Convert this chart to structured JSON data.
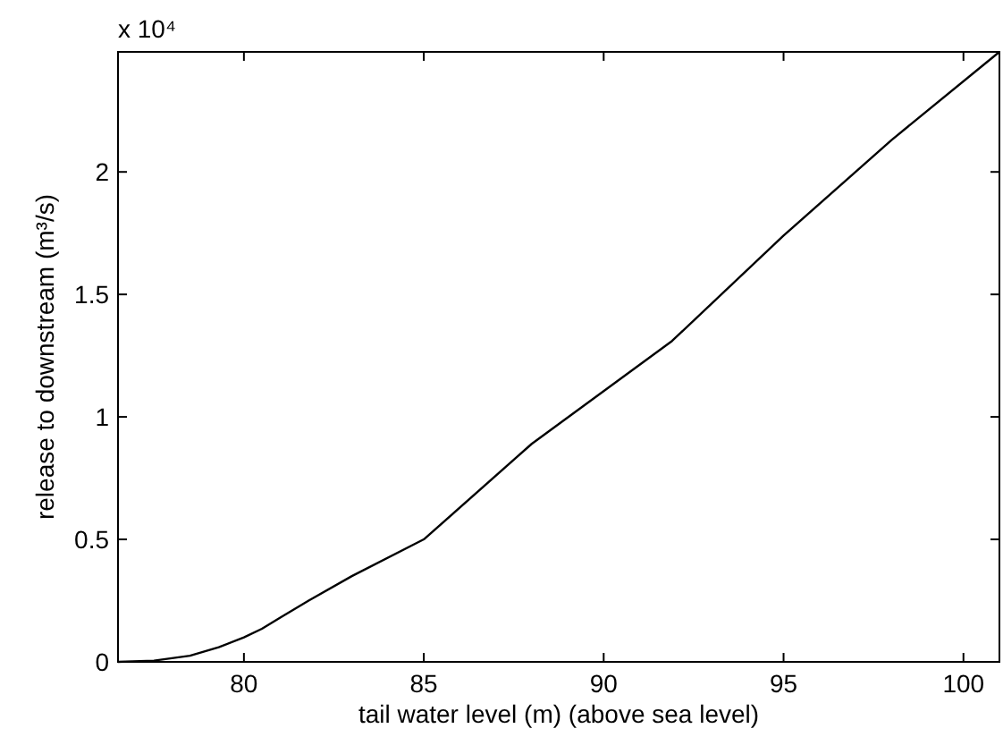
{
  "chart_data": {
    "type": "line",
    "xlabel": "tail water level (m) (above sea level)",
    "ylabel": "release to downstream (m³/s)",
    "annotations": [
      "x 10⁴"
    ],
    "x": [
      76.5,
      77.5,
      78.5,
      79.3,
      80,
      80.5,
      81,
      81.8,
      83,
      85,
      88,
      91.9,
      95,
      98,
      101
    ],
    "series": [
      {
        "color": "#000000",
        "values": [
          0,
          0.005,
          0.025,
          0.06,
          0.1,
          0.135,
          0.18,
          0.25,
          0.35,
          0.5,
          0.89,
          1.31,
          1.74,
          2.13,
          2.49
        ]
      }
    ],
    "xlim": [
      76.5,
      101
    ],
    "xticks": [
      80,
      85,
      90,
      95,
      100
    ],
    "ylim": [
      0,
      2.49
    ],
    "yticks": [
      0,
      0.5,
      1,
      1.5,
      2
    ],
    "grid": false,
    "marker": "none",
    "line_style": "solid"
  }
}
